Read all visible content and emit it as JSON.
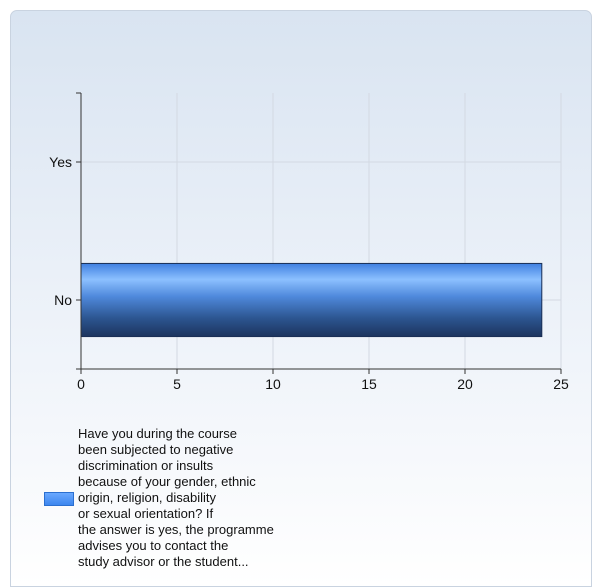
{
  "chart_data": {
    "type": "bar",
    "orientation": "horizontal",
    "categories": [
      "Yes",
      "No"
    ],
    "series": [
      {
        "name": "Have you during the course\nbeen subjected to negative\ndiscrimination or insults\nbecause of your gender, ethnic\norigin, religion, disability\nor sexual orientation? If\nthe answer is yes, the programme\nadvises you to contact the\nstudy advisor or the student...",
        "values": [
          0,
          24
        ]
      }
    ],
    "x_ticks": [
      "0",
      "5",
      "10",
      "15",
      "20",
      "25"
    ],
    "xlim": [
      0,
      25
    ],
    "grid": true,
    "legend_position": "bottom-left",
    "bar_color": "#4a90f0",
    "bar_color_dark": "#1e3a66"
  }
}
